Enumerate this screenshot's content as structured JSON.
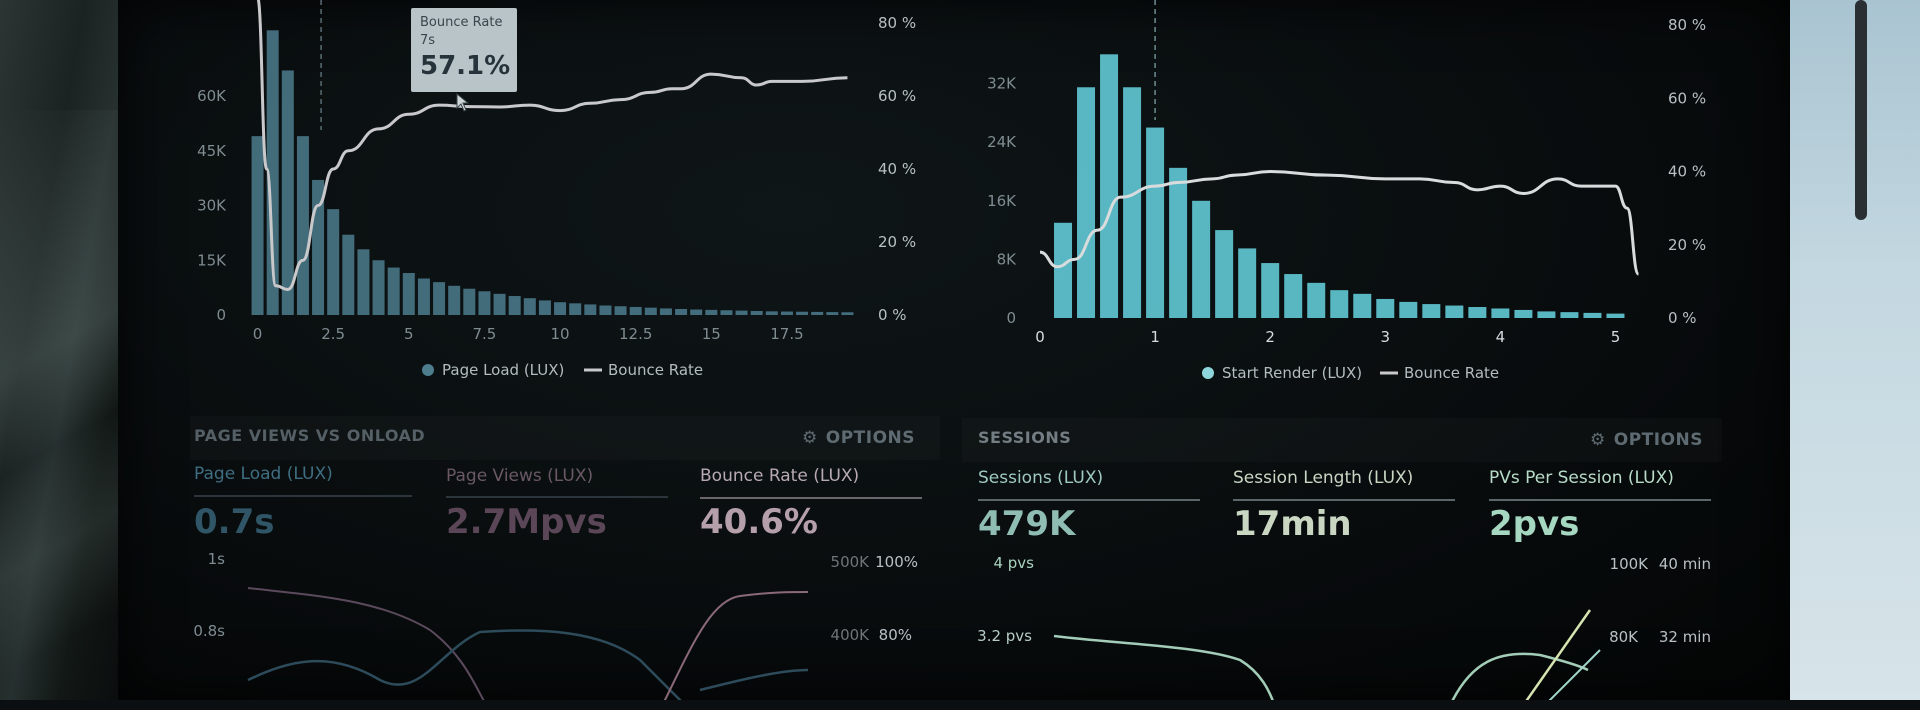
{
  "chart_data": [
    {
      "type": "bar",
      "series": [
        {
          "name": "Page Load (LUX)",
          "kind": "bar",
          "axis": "left",
          "x": [
            0,
            0.5,
            1,
            1.5,
            2,
            2.5,
            3,
            3.5,
            4,
            4.5,
            5,
            5.5,
            6,
            6.5,
            7,
            7.5,
            8,
            8.5,
            9,
            9.5,
            10,
            10.5,
            11,
            11.5,
            12,
            12.5,
            13,
            13.5,
            14,
            14.5,
            15,
            15.5,
            16,
            16.5,
            17,
            17.5,
            18,
            18.5,
            19,
            19.5
          ],
          "values": [
            49000,
            78000,
            67000,
            49000,
            37000,
            29000,
            22000,
            18000,
            15000,
            13000,
            11500,
            10000,
            9000,
            8000,
            7200,
            6500,
            5800,
            5200,
            4600,
            4000,
            3500,
            3200,
            2900,
            2600,
            2400,
            2200,
            2000,
            1800,
            1650,
            1500,
            1400,
            1300,
            1200,
            1100,
            1000,
            950,
            900,
            850,
            800,
            750
          ]
        },
        {
          "name": "Bounce Rate",
          "kind": "line",
          "axis": "right",
          "x": [
            0,
            0.3,
            0.6,
            1,
            1.5,
            2,
            2.5,
            3,
            4,
            5,
            6,
            7,
            8,
            9,
            10,
            11,
            12,
            13,
            13.7,
            14,
            15,
            16,
            16.5,
            17,
            18,
            19.5
          ],
          "values": [
            87,
            40,
            8,
            7,
            15,
            30,
            40,
            45,
            51,
            55,
            57.5,
            57.1,
            57,
            57.5,
            56,
            58,
            59,
            61,
            62,
            62,
            66,
            65,
            63,
            64,
            64,
            65
          ]
        }
      ],
      "xticks": [
        "0",
        "2.5",
        "5",
        "7.5",
        "10",
        "12.5",
        "15",
        "17.5"
      ],
      "yticks_left": [
        "0",
        "15K",
        "30K",
        "45K",
        "60K"
      ],
      "yticks_right": [
        "0 %",
        "20 %",
        "40 %",
        "60 %",
        "80 %"
      ],
      "xlim": [
        -0.25,
        19.75
      ],
      "ylim_left": [
        0,
        80000
      ],
      "ylim_right": [
        0,
        80
      ],
      "marker_x": 2.1,
      "legend": [
        "Page Load (LUX)",
        "Bounce Rate"
      ],
      "legend_position": "bottom",
      "colors": {
        "bar": "#4e7d8e",
        "line": "#c9c9cb"
      }
    },
    {
      "type": "bar",
      "series": [
        {
          "name": "Start Render (LUX)",
          "kind": "bar",
          "axis": "left",
          "x": [
            0.2,
            0.4,
            0.6,
            0.8,
            1.0,
            1.2,
            1.4,
            1.6,
            1.8,
            2.0,
            2.2,
            2.4,
            2.6,
            2.8,
            3.0,
            3.2,
            3.4,
            3.6,
            3.8,
            4.0,
            4.2,
            4.4,
            4.6,
            4.8,
            5.0
          ],
          "values": [
            13000,
            31500,
            36000,
            31500,
            26000,
            20500,
            16000,
            12000,
            9500,
            7500,
            6000,
            4800,
            3800,
            3300,
            2600,
            2200,
            1900,
            1700,
            1500,
            1300,
            1100,
            900,
            800,
            700,
            600
          ]
        },
        {
          "name": "Bounce Rate",
          "kind": "line",
          "axis": "right",
          "x": [
            0,
            0.15,
            0.3,
            0.5,
            0.7,
            1.0,
            1.2,
            1.5,
            1.7,
            2.0,
            2.5,
            3.0,
            3.3,
            3.6,
            3.8,
            4.0,
            4.2,
            4.5,
            4.7,
            5.0,
            5.1,
            5.2
          ],
          "values": [
            18,
            14,
            16,
            24,
            33,
            36,
            37,
            38,
            39,
            40,
            39,
            38,
            38,
            37,
            35,
            36,
            34,
            38,
            36,
            36,
            30,
            12
          ]
        }
      ],
      "xticks": [
        "0",
        "1",
        "2",
        "3",
        "4",
        "5"
      ],
      "yticks_left": [
        "0",
        "8K",
        "16K",
        "24K",
        "32K"
      ],
      "yticks_right": [
        "0 %",
        "20 %",
        "40 %",
        "60 %",
        "80 %"
      ],
      "xlim": [
        0,
        5.3
      ],
      "ylim_left": [
        0,
        40000
      ],
      "ylim_right": [
        0,
        80
      ],
      "marker_x": 1.0,
      "legend": [
        "Start Render (LUX)",
        "Bounce Rate"
      ],
      "legend_position": "bottom",
      "colors": {
        "bar": "#5ec1cc",
        "line": "#d9dcdd"
      }
    }
  ],
  "tooltip": {
    "title": "Bounce Rate",
    "subtitle": "7s",
    "value": "57.1%"
  },
  "panels": [
    {
      "title": "PAGE VIEWS VS ONLOAD",
      "options_label": "OPTIONS",
      "metrics": [
        {
          "label": "Page Load (LUX)",
          "value": "0.7s",
          "label_color": "#3f6e82",
          "value_color": "#2f5566"
        },
        {
          "label": "Page Views (LUX)",
          "value": "2.7Mpvs",
          "label_color": "#6a5866",
          "value_color": "#5a4657"
        },
        {
          "label": "Bounce Rate (LUX)",
          "value": "40.6%",
          "label_color": "#b8aab2",
          "value_color": "#b59fa9"
        }
      ],
      "mini_chart": {
        "left_ticks": [
          "1s",
          "0.8s"
        ],
        "right_ticks_a": [
          "500K",
          "400K"
        ],
        "right_ticks_b": [
          "100%",
          "80%"
        ]
      }
    },
    {
      "title": "SESSIONS",
      "options_label": "OPTIONS",
      "metrics": [
        {
          "label": "Sessions (LUX)",
          "value": "479K",
          "label_color": "#9fc9c0",
          "value_color": "#8fbdb4"
        },
        {
          "label": "Session Length (LUX)",
          "value": "17min",
          "label_color": "#c9d6c4",
          "value_color": "#c8d6c2"
        },
        {
          "label": "PVs Per Session (LUX)",
          "value": "2pvs",
          "label_color": "#b8dcc8",
          "value_color": "#a5d7c1"
        }
      ],
      "mini_chart": {
        "left_ticks": [
          "4 pvs",
          "3.2 pvs"
        ],
        "right_ticks_a": [
          "100K",
          "80K"
        ],
        "right_ticks_b": [
          "40 min",
          "32 min"
        ]
      }
    }
  ]
}
